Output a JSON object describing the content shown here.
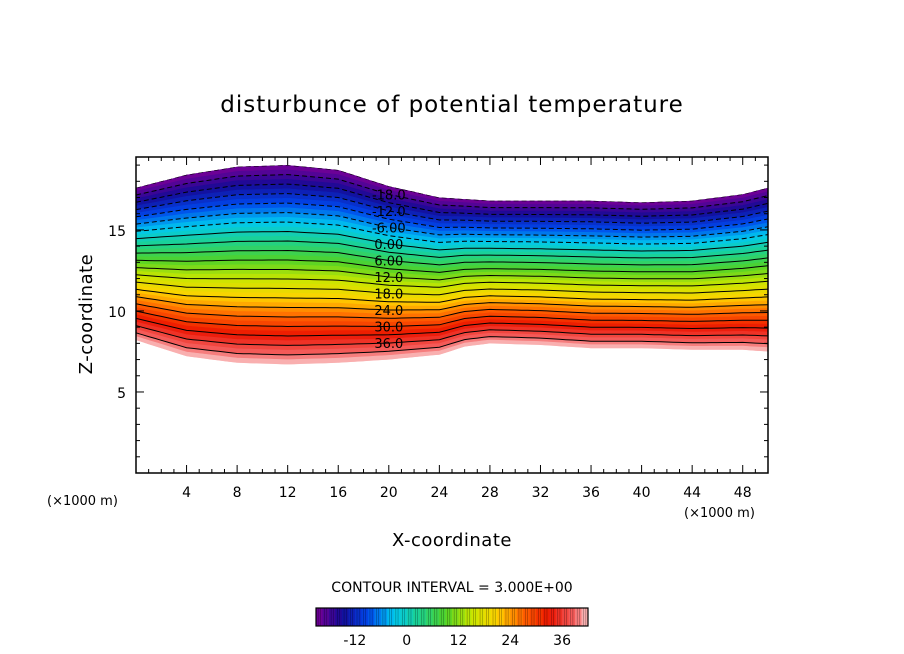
{
  "chart_data": {
    "type": "contour",
    "title": "disturbunce of potential temperature",
    "xlabel": "X-coordinate",
    "ylabel": "Z-coordinate",
    "x_unit": "(×1000 m)",
    "y_unit": "(×1000 m)",
    "xlim": [
      0,
      50
    ],
    "ylim": [
      0,
      19.5
    ],
    "x_ticks": [
      4,
      8,
      12,
      16,
      20,
      24,
      28,
      32,
      36,
      40,
      44,
      48
    ],
    "y_ticks": [
      5,
      10,
      15
    ],
    "contour_interval_text": "CONTOUR INTERVAL = 3.000E+00",
    "contour_interval": 3.0,
    "contour_labels": [
      "-18.0",
      "-12.0",
      "-6.00",
      "0.00",
      "6.00",
      "12.0",
      "18.0",
      "24.0",
      "30.0",
      "36.0"
    ],
    "field_range": [
      -21,
      42
    ],
    "top_boundary": [
      [
        0,
        17.6
      ],
      [
        4,
        18.4
      ],
      [
        8,
        18.9
      ],
      [
        12,
        19.0
      ],
      [
        16,
        18.7
      ],
      [
        20,
        17.7
      ],
      [
        24,
        17.0
      ],
      [
        28,
        16.8
      ],
      [
        32,
        16.8
      ],
      [
        36,
        16.8
      ],
      [
        40,
        16.7
      ],
      [
        44,
        16.8
      ],
      [
        48,
        17.2
      ],
      [
        50,
        17.6
      ]
    ],
    "bottom_boundary": [
      [
        0,
        8.2
      ],
      [
        4,
        7.2
      ],
      [
        8,
        6.8
      ],
      [
        12,
        6.7
      ],
      [
        16,
        6.8
      ],
      [
        20,
        7.0
      ],
      [
        24,
        7.3
      ],
      [
        26,
        7.8
      ],
      [
        28,
        8.0
      ],
      [
        32,
        7.9
      ],
      [
        36,
        7.7
      ],
      [
        40,
        7.7
      ],
      [
        44,
        7.6
      ],
      [
        48,
        7.6
      ],
      [
        50,
        7.5
      ]
    ],
    "colorbar": {
      "tick_labels": [
        "-12",
        "0",
        "12",
        "24",
        "36"
      ],
      "tick_values": [
        -12,
        0,
        12,
        24,
        36
      ],
      "range": [
        -21,
        42
      ]
    },
    "negative_contours_style": "dashed",
    "positive_contours_style": "solid"
  }
}
